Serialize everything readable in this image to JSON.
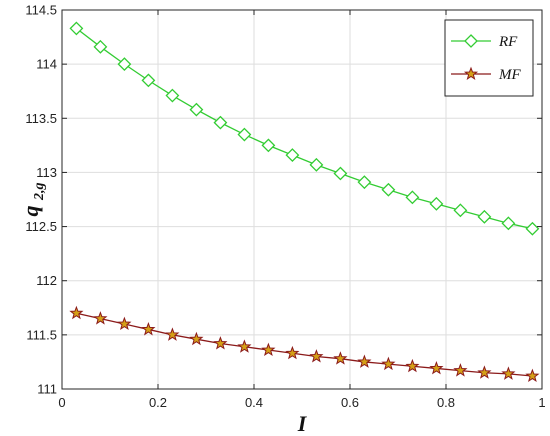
{
  "chart_data": {
    "type": "line",
    "xlabel": "I",
    "ylabel_main": "q",
    "ylabel_sub": "2,g",
    "xlim": [
      0,
      1
    ],
    "ylim": [
      111,
      114.5
    ],
    "x_ticks": [
      0,
      0.2,
      0.4,
      0.6,
      0.8,
      1
    ],
    "x_tick_labels": [
      "0",
      "0.2",
      "0.4",
      "0.6",
      "0.8",
      "1"
    ],
    "y_ticks": [
      111,
      111.5,
      112,
      112.5,
      113,
      113.5,
      114,
      114.5
    ],
    "y_tick_labels": [
      "111",
      "111.5",
      "112",
      "112.5",
      "113",
      "113.5",
      "114",
      "114.5"
    ],
    "grid": true,
    "legend_position": "top-right",
    "x": [
      0.03,
      0.08,
      0.13,
      0.18,
      0.23,
      0.28,
      0.33,
      0.38,
      0.43,
      0.48,
      0.53,
      0.58,
      0.63,
      0.68,
      0.73,
      0.78,
      0.83,
      0.88,
      0.93,
      0.98
    ],
    "series": [
      {
        "name": "RF",
        "marker": "diamond",
        "color": "#33cc33",
        "values": [
          114.33,
          114.16,
          114.0,
          113.85,
          113.71,
          113.58,
          113.46,
          113.35,
          113.25,
          113.16,
          113.07,
          112.99,
          112.91,
          112.84,
          112.77,
          112.71,
          112.65,
          112.59,
          112.53,
          112.48
        ]
      },
      {
        "name": "MF",
        "marker": "star",
        "color": "#8b1a1a",
        "marker_fill": "#d4a017",
        "values": [
          111.7,
          111.65,
          111.6,
          111.55,
          111.5,
          111.46,
          111.42,
          111.39,
          111.36,
          111.33,
          111.3,
          111.28,
          111.25,
          111.23,
          111.21,
          111.19,
          111.17,
          111.15,
          111.14,
          111.12
        ]
      }
    ]
  }
}
